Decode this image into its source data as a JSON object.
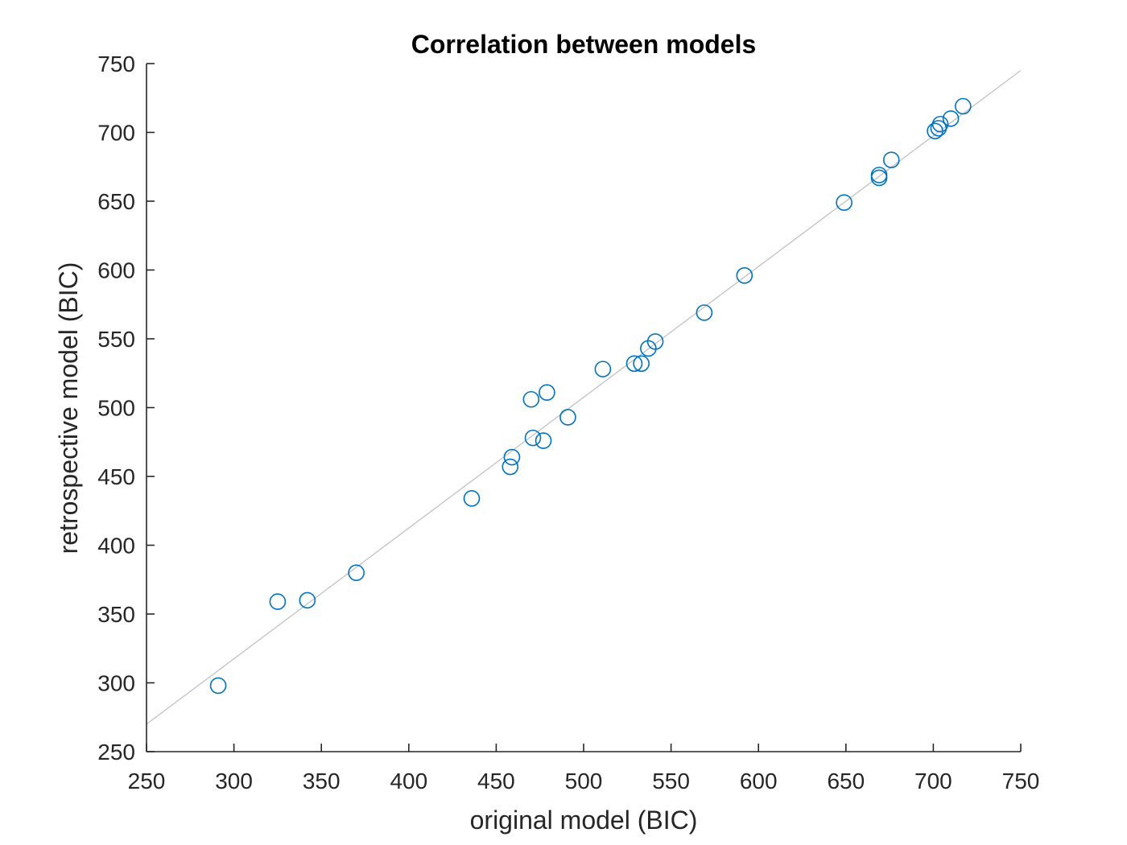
{
  "chart_data": {
    "type": "scatter",
    "title": "Correlation between models",
    "xlabel": "original model (BIC)",
    "ylabel": "retrospective model (BIC)",
    "xlim": [
      250,
      750
    ],
    "ylim": [
      250,
      750
    ],
    "xticks": [
      250,
      300,
      350,
      400,
      450,
      500,
      550,
      600,
      650,
      700,
      750
    ],
    "yticks": [
      250,
      300,
      350,
      400,
      450,
      500,
      550,
      600,
      650,
      700,
      750
    ],
    "grid": false,
    "marker": "open-circle",
    "colors": {
      "marker": "#0072BD",
      "reference_line": "#bdbdbd",
      "axis": "#262626"
    },
    "reference_line": {
      "type": "identity",
      "from": [
        250,
        270
      ],
      "to": [
        750,
        745
      ]
    },
    "series": [
      {
        "points": [
          {
            "x": 291,
            "y": 298
          },
          {
            "x": 325,
            "y": 359
          },
          {
            "x": 342,
            "y": 360
          },
          {
            "x": 370,
            "y": 380
          },
          {
            "x": 436,
            "y": 434
          },
          {
            "x": 458,
            "y": 457
          },
          {
            "x": 459,
            "y": 464
          },
          {
            "x": 470,
            "y": 506
          },
          {
            "x": 471,
            "y": 478
          },
          {
            "x": 477,
            "y": 476
          },
          {
            "x": 479,
            "y": 511
          },
          {
            "x": 491,
            "y": 493
          },
          {
            "x": 511,
            "y": 528
          },
          {
            "x": 529,
            "y": 532
          },
          {
            "x": 533,
            "y": 532
          },
          {
            "x": 537,
            "y": 543
          },
          {
            "x": 541,
            "y": 548
          },
          {
            "x": 569,
            "y": 569
          },
          {
            "x": 592,
            "y": 596
          },
          {
            "x": 649,
            "y": 649
          },
          {
            "x": 669,
            "y": 669
          },
          {
            "x": 669,
            "y": 667
          },
          {
            "x": 676,
            "y": 680
          },
          {
            "x": 701,
            "y": 701
          },
          {
            "x": 703,
            "y": 703
          },
          {
            "x": 704,
            "y": 706
          },
          {
            "x": 710,
            "y": 710
          },
          {
            "x": 717,
            "y": 719
          }
        ]
      }
    ]
  }
}
